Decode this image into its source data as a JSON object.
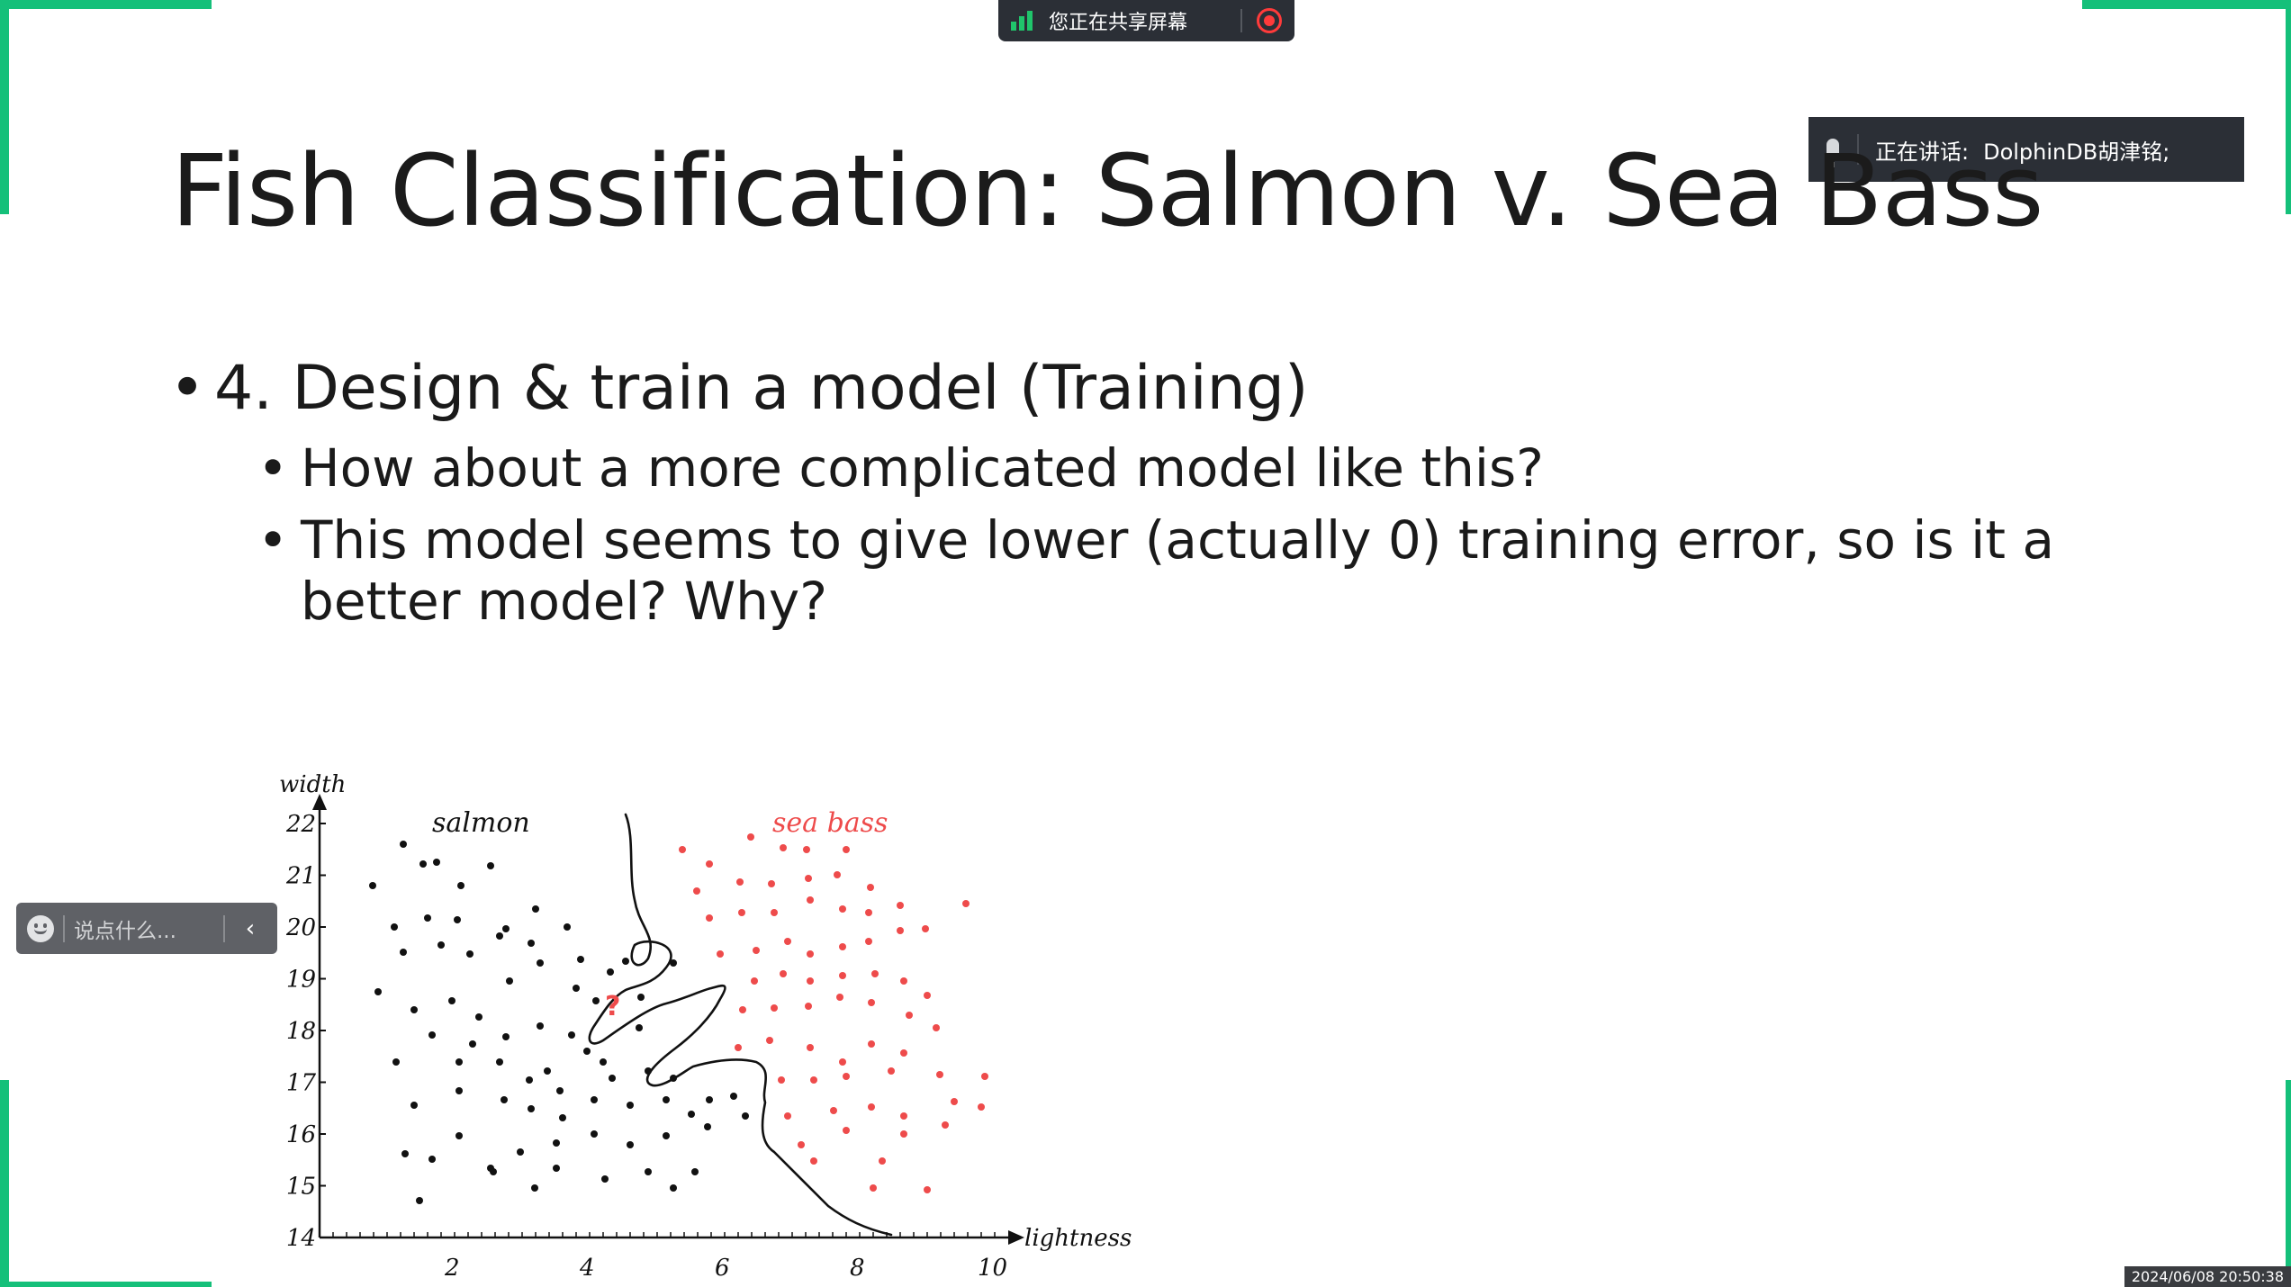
{
  "share_bar": {
    "status_text": "您正在共享屏幕",
    "signal_icon": "signal-bars-icon",
    "stop_icon": "stop-record-icon",
    "accent_color": "#20c56b",
    "stop_color": "#ff3b3b"
  },
  "speaking": {
    "label": "正在讲话:",
    "name": "DolphinDB胡津铭;",
    "icon": "microphone-icon"
  },
  "slide": {
    "title": "Fish Classification: Salmon v. Sea Bass",
    "bullet": "4. Design & train a model (Training)",
    "subbullets": [
      "How about a more complicated model like this?",
      "This model seems to give lower (actually 0) training error, so is it a better model? Why?"
    ],
    "bullet_char": "•"
  },
  "figure": {
    "y_axis_label": "width",
    "x_axis_label": "lightness",
    "y_ticks": [
      "22",
      "21",
      "20",
      "19",
      "18",
      "17",
      "16",
      "15",
      "14"
    ],
    "x_ticks": [
      "2",
      "4",
      "6",
      "8",
      "10"
    ],
    "class_labels": {
      "salmon": "salmon",
      "sea_bass": "sea bass"
    },
    "unknown_marker": "?",
    "colors": {
      "salmon": "#111111",
      "sea_bass": "#ee4b4b"
    }
  },
  "chat": {
    "placeholder": "说点什么...",
    "collapse_glyph": "‹",
    "emoji_icon": "smiley-icon"
  },
  "timestamp": "2024/06/08 20:50:38"
}
